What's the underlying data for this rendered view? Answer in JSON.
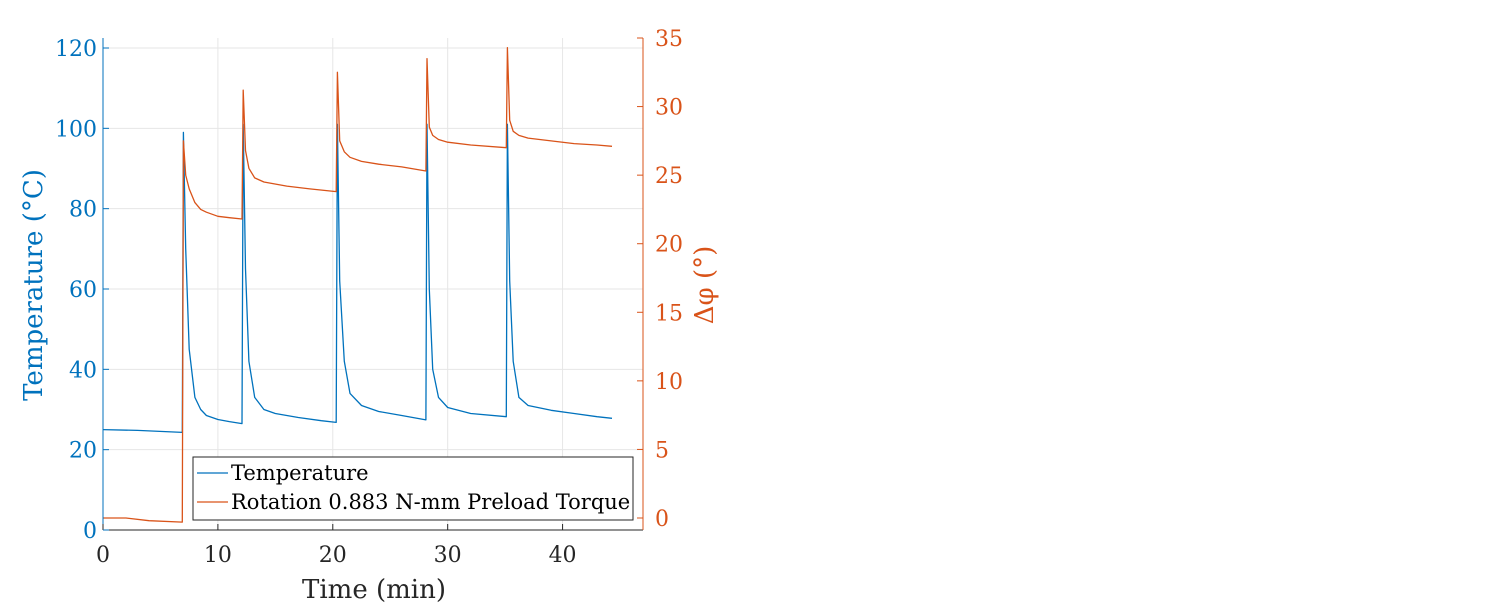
{
  "chart_data": {
    "type": "line",
    "xlabel": "Time (min)",
    "ylabel_left": "Temperature (°C)",
    "ylabel_right": "Δφ (°)",
    "xlim": [
      0,
      47
    ],
    "ylim_left": [
      0,
      120
    ],
    "ylim_right": [
      0,
      35
    ],
    "xticks": [
      0,
      10,
      20,
      30,
      40
    ],
    "yticks_left": [
      0,
      20,
      40,
      60,
      80,
      100,
      120
    ],
    "yticks_right": [
      0,
      5,
      10,
      15,
      20,
      25,
      30,
      35
    ],
    "grid": true,
    "legend_position": "bottom-left",
    "colors": {
      "left_axis": "#0072BD",
      "right_axis": "#D95319",
      "grid": "#e6e6e6",
      "axis": "#262626"
    },
    "series": [
      {
        "name": "Temperature",
        "axis": "left",
        "color": "#0072BD",
        "x": [
          0,
          3,
          6.9,
          7.0,
          7.2,
          7.5,
          8,
          8.5,
          9,
          10,
          11,
          12.1,
          12.2,
          12.4,
          12.7,
          13.2,
          14,
          15,
          17,
          19,
          20.3,
          20.4,
          20.6,
          21,
          21.5,
          22.5,
          24,
          26,
          28.1,
          28.2,
          28.4,
          28.7,
          29.2,
          30,
          32,
          35.1,
          35.2,
          35.4,
          35.7,
          36.2,
          37,
          39,
          41,
          43,
          44.3
        ],
        "y": [
          25,
          24.8,
          24.3,
          99,
          70,
          45,
          33,
          30,
          28.5,
          27.5,
          27.0,
          26.5,
          101,
          65,
          42,
          33,
          30,
          29,
          28,
          27.2,
          26.8,
          101,
          62,
          42,
          34,
          31,
          29.5,
          28.5,
          27.4,
          101,
          60,
          40,
          33,
          30.5,
          29,
          28.2,
          101,
          62,
          42,
          33,
          31,
          29.8,
          29,
          28.2,
          27.8
        ]
      },
      {
        "name": "Rotation 0.883 N-mm Preload Torque",
        "axis": "right",
        "color": "#D95319",
        "x": [
          0,
          2,
          4,
          6.9,
          7.0,
          7.2,
          7.5,
          8,
          8.5,
          9,
          10,
          11,
          12.1,
          12.2,
          12.4,
          12.7,
          13.2,
          14,
          16,
          18,
          20.3,
          20.4,
          20.6,
          21,
          21.5,
          22.5,
          24,
          26,
          28.1,
          28.2,
          28.4,
          28.7,
          29.2,
          30,
          32,
          35.1,
          35.2,
          35.4,
          35.7,
          36.2,
          37,
          39,
          41,
          43,
          44.3
        ],
        "y": [
          0,
          0,
          -0.2,
          -0.3,
          27.5,
          25,
          24,
          23,
          22.5,
          22.3,
          22.0,
          21.9,
          21.8,
          31.2,
          26.8,
          25.5,
          24.8,
          24.5,
          24.2,
          24.0,
          23.8,
          32.5,
          27.5,
          26.7,
          26.3,
          26.0,
          25.8,
          25.6,
          25.3,
          33.5,
          28.5,
          27.9,
          27.6,
          27.4,
          27.2,
          27.0,
          34.3,
          29.0,
          28.2,
          27.9,
          27.7,
          27.5,
          27.3,
          27.2,
          27.1
        ]
      }
    ]
  }
}
